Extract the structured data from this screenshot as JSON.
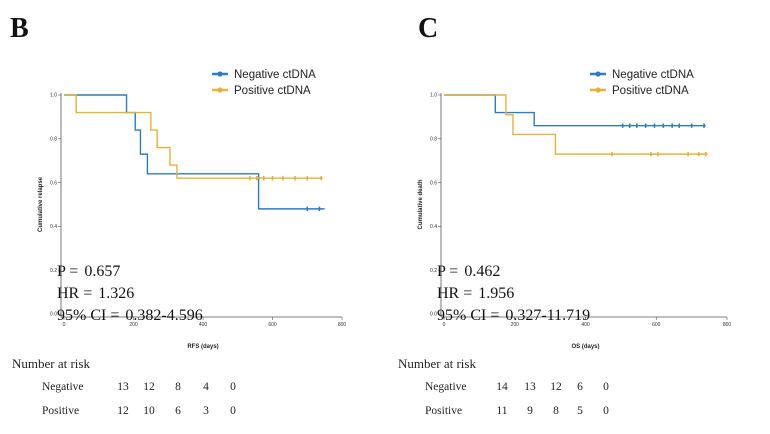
{
  "colors": {
    "negative": "#2f7bbf",
    "positive": "#e3b23c",
    "axis": "#555555"
  },
  "legend": {
    "negative": "Negative ctDNA",
    "positive": "Positive ctDNA"
  },
  "stats_labels": {
    "p": "P =",
    "hr": "HR =",
    "ci": "95% CI ="
  },
  "risk_labels": {
    "title": "Number at risk",
    "negative": "Negative",
    "positive": "Positive"
  },
  "panels": [
    {
      "letter": "B",
      "p": "0.657",
      "hr": "1.326",
      "ci": "0.382-4.596",
      "risk": {
        "negative": [
          "13",
          "12",
          "8",
          "4",
          "0"
        ],
        "positive": [
          "12",
          "10",
          "6",
          "3",
          "0"
        ]
      }
    },
    {
      "letter": "C",
      "p": "0.462",
      "hr": "1.956",
      "ci": "0.327-11.719",
      "risk": {
        "negative": [
          "14",
          "13",
          "12",
          "6",
          "0"
        ],
        "positive": [
          "11",
          "9",
          "8",
          "5",
          "0"
        ]
      }
    }
  ],
  "chart_data": [
    {
      "type": "line",
      "subtype": "kaplan-meier step",
      "title": "",
      "xlabel": "RFS (days)",
      "ylabel": "Cumulative relapse",
      "xlim": [
        0,
        800
      ],
      "ylim": [
        0,
        1
      ],
      "xticks": [
        "0",
        "200",
        "400",
        "600",
        "800"
      ],
      "yticks": [
        "0.0",
        "0.2",
        "0.4",
        "0.6",
        "0.8",
        "1.0"
      ],
      "series": [
        {
          "name": "Negative ctDNA",
          "color": "#2f7bbf",
          "steps": [
            [
              0,
              1.0
            ],
            [
              180,
              0.92
            ],
            [
              205,
              0.84
            ],
            [
              220,
              0.73
            ],
            [
              240,
              0.64
            ],
            [
              560,
              0.48
            ],
            [
              750,
              0.48
            ]
          ],
          "censored": [
            [
              700,
              0.48
            ],
            [
              735,
              0.48
            ]
          ]
        },
        {
          "name": "Positive ctDNA",
          "color": "#e3b23c",
          "steps": [
            [
              0,
              1.0
            ],
            [
              35,
              0.92
            ],
            [
              250,
              0.84
            ],
            [
              268,
              0.76
            ],
            [
              305,
              0.68
            ],
            [
              325,
              0.62
            ],
            [
              745,
              0.62
            ]
          ],
          "censored": [
            [
              535,
              0.62
            ],
            [
              555,
              0.62
            ],
            [
              575,
              0.62
            ],
            [
              600,
              0.62
            ],
            [
              630,
              0.62
            ],
            [
              665,
              0.62
            ],
            [
              700,
              0.62
            ],
            [
              740,
              0.62
            ]
          ]
        }
      ]
    },
    {
      "type": "line",
      "subtype": "kaplan-meier step",
      "title": "",
      "xlabel": "OS (days)",
      "ylabel": "Cumulative death",
      "xlim": [
        0,
        800
      ],
      "ylim": [
        0,
        1
      ],
      "xticks": [
        "0",
        "200",
        "400",
        "600",
        "800"
      ],
      "yticks": [
        "0.0",
        "0.2",
        "0.4",
        "0.6",
        "0.8",
        "1.0"
      ],
      "series": [
        {
          "name": "Negative ctDNA",
          "color": "#2f7bbf",
          "steps": [
            [
              0,
              1.0
            ],
            [
              145,
              0.92
            ],
            [
              255,
              0.86
            ],
            [
              740,
              0.86
            ]
          ],
          "censored": [
            [
              505,
              0.86
            ],
            [
              525,
              0.86
            ],
            [
              545,
              0.86
            ],
            [
              570,
              0.86
            ],
            [
              595,
              0.86
            ],
            [
              620,
              0.86
            ],
            [
              645,
              0.86
            ],
            [
              665,
              0.86
            ],
            [
              700,
              0.86
            ],
            [
              735,
              0.86
            ]
          ]
        },
        {
          "name": "Positive ctDNA",
          "color": "#e3b23c",
          "steps": [
            [
              0,
              1.0
            ],
            [
              175,
              0.91
            ],
            [
              195,
              0.82
            ],
            [
              315,
              0.73
            ],
            [
              745,
              0.73
            ]
          ],
          "censored": [
            [
              475,
              0.73
            ],
            [
              585,
              0.73
            ],
            [
              605,
              0.73
            ],
            [
              690,
              0.73
            ],
            [
              720,
              0.73
            ],
            [
              740,
              0.73
            ]
          ]
        }
      ]
    }
  ]
}
